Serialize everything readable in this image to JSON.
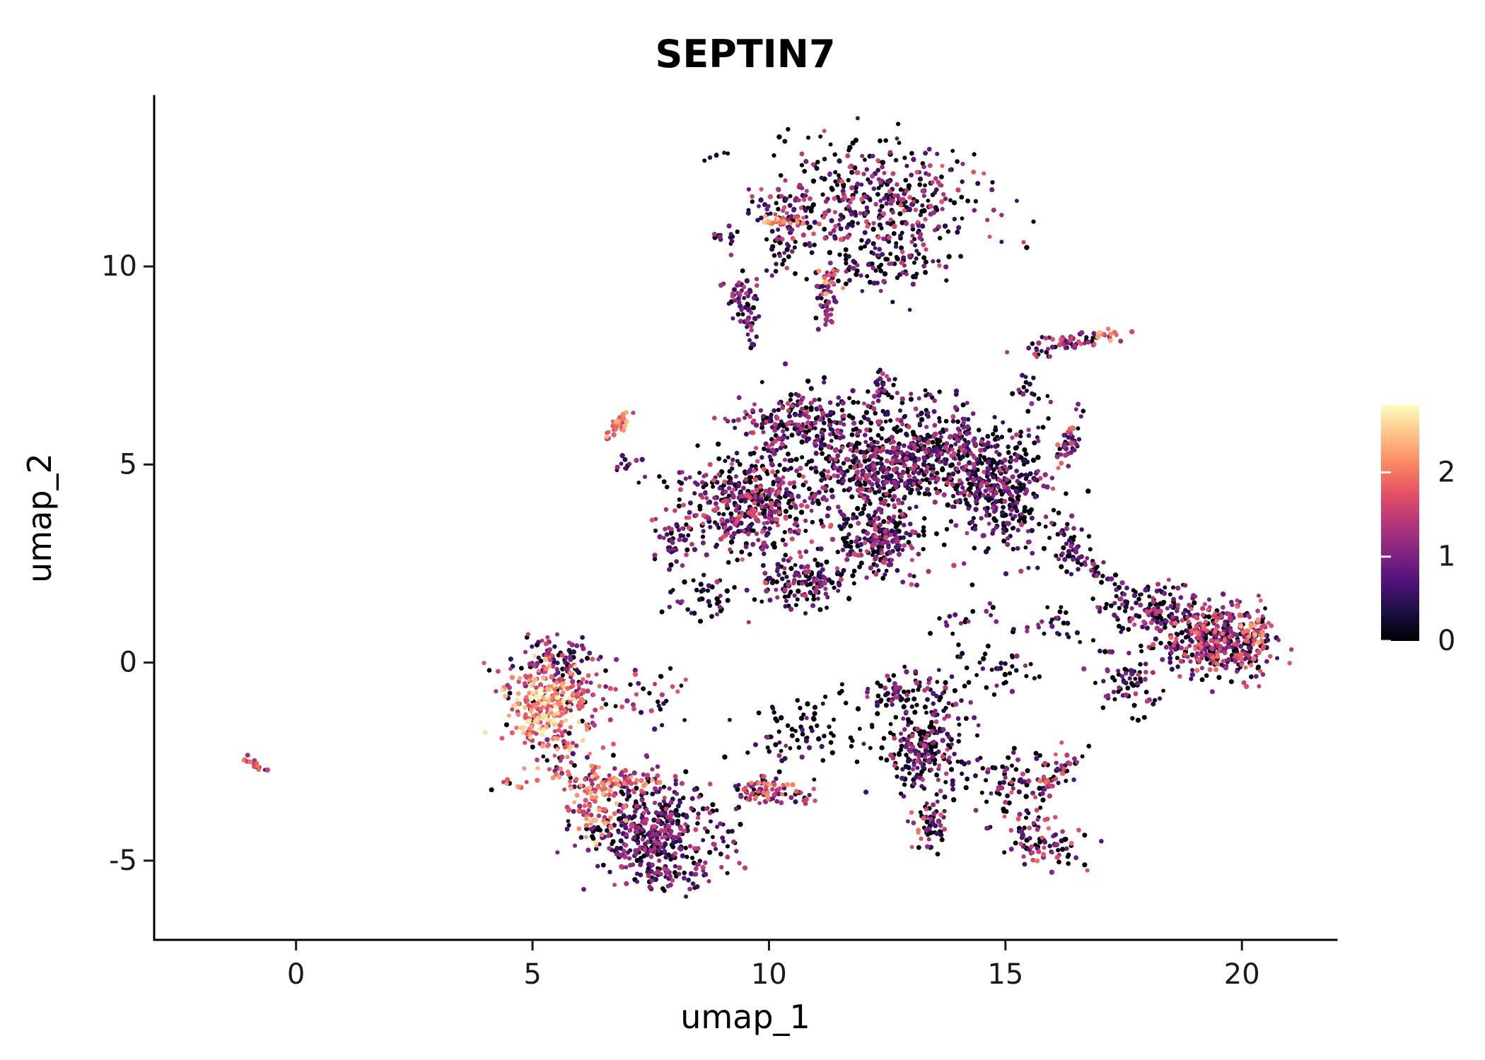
{
  "chart_data": {
    "type": "scatter",
    "title": "SEPTIN7",
    "xlabel": "umap_1",
    "ylabel": "umap_2",
    "xlim": [
      -3,
      22
    ],
    "ylim": [
      -7,
      14.3
    ],
    "xticks": [
      0,
      5,
      10,
      15,
      20
    ],
    "yticks": [
      -5,
      0,
      5,
      10
    ],
    "grid": false,
    "background": "#ffffff",
    "point_radius": 3.2,
    "seed": 20240507,
    "colorbar": {
      "position": "right",
      "ticks": [
        0,
        1,
        2
      ],
      "cmin": 0,
      "cmax": 2.8,
      "colormap_name": "magma",
      "colormap_stops": [
        "#000004",
        "#1c1044",
        "#4f127b",
        "#812581",
        "#b5367a",
        "#e55064",
        "#fb8761",
        "#fec287",
        "#fcfdbf"
      ]
    },
    "clusters": [
      {
        "cx": 12.4,
        "cy": 11.6,
        "sx": 1.05,
        "sy": 0.8,
        "n": 400,
        "zero": 0.35,
        "emin": 0.2,
        "emax": 1.8
      },
      {
        "cx": 10.5,
        "cy": 11.2,
        "sx": 0.4,
        "sy": 0.4,
        "n": 80,
        "zero": 0.3,
        "emin": 0.3,
        "emax": 1.8
      },
      {
        "cx": 10.15,
        "cy": 11.15,
        "sx": 0.3,
        "sy": 0.07,
        "n": 22,
        "zero": 0.05,
        "emin": 1.7,
        "emax": 2.5
      },
      {
        "cx": 9.1,
        "cy": 10.8,
        "sx": 0.2,
        "sy": 0.15,
        "n": 14,
        "zero": 0.3,
        "emin": 0.3,
        "emax": 1.5
      },
      {
        "cx": 10.3,
        "cy": 10.35,
        "sx": 0.25,
        "sy": 0.2,
        "n": 20,
        "zero": 0.4,
        "emin": 0.2,
        "emax": 1.4
      },
      {
        "cx": 12.5,
        "cy": 10.05,
        "sx": 0.7,
        "sy": 0.35,
        "n": 70,
        "zero": 0.5,
        "emin": 0.1,
        "emax": 1.3
      },
      {
        "cx": 11.0,
        "cy": 13.0,
        "sx": 0.5,
        "sy": 0.25,
        "n": 10,
        "zero": 0.4,
        "emin": 0.2,
        "emax": 1.2
      },
      {
        "cx": 8.8,
        "cy": 12.8,
        "sx": 0.3,
        "sy": 0.2,
        "n": 5,
        "zero": 0.4,
        "emin": 0.2,
        "emax": 1.0
      },
      {
        "cx": 9.4,
        "cy": 9.3,
        "sx": 0.18,
        "sy": 0.28,
        "n": 40,
        "zero": 0.2,
        "emin": 0.5,
        "emax": 1.5
      },
      {
        "cx": 9.55,
        "cy": 8.6,
        "sx": 0.1,
        "sy": 0.3,
        "n": 30,
        "zero": 0.2,
        "emin": 0.4,
        "emax": 1.4
      },
      {
        "cx": 11.25,
        "cy": 9.0,
        "sx": 0.1,
        "sy": 0.4,
        "n": 40,
        "zero": 0.15,
        "emin": 0.4,
        "emax": 1.4
      },
      {
        "cx": 11.3,
        "cy": 9.55,
        "sx": 0.12,
        "sy": 0.15,
        "n": 14,
        "zero": 0.05,
        "emin": 1.6,
        "emax": 2.4
      },
      {
        "cx": 16.3,
        "cy": 8.05,
        "sx": 0.5,
        "sy": 0.13,
        "rot": 10,
        "n": 65,
        "zero": 0.25,
        "emin": 0.3,
        "emax": 1.8
      },
      {
        "cx": 17.15,
        "cy": 8.27,
        "sx": 0.12,
        "sy": 0.08,
        "n": 12,
        "zero": 0.05,
        "emin": 1.5,
        "emax": 2.4
      },
      {
        "cx": 6.8,
        "cy": 6.0,
        "sx": 0.25,
        "sy": 0.07,
        "rot": 50,
        "n": 35,
        "zero": 0.05,
        "emin": 1.2,
        "emax": 2.4
      },
      {
        "cx": 7.0,
        "cy": 4.95,
        "sx": 0.15,
        "sy": 0.25,
        "n": 12,
        "zero": 0.3,
        "emin": 0.3,
        "emax": 1.3
      },
      {
        "cx": 10.8,
        "cy": 6.1,
        "sx": 0.55,
        "sy": 0.35,
        "n": 180,
        "zero": 0.4,
        "emin": 0.2,
        "emax": 1.6
      },
      {
        "cx": 9.6,
        "cy": 6.15,
        "sx": 0.2,
        "sy": 0.3,
        "rot": 40,
        "n": 25,
        "zero": 0.2,
        "emin": 0.4,
        "emax": 1.8
      },
      {
        "cx": 12.9,
        "cy": 6.5,
        "sx": 0.7,
        "sy": 0.3,
        "n": 60,
        "zero": 0.5,
        "emin": 0.1,
        "emax": 1.3
      },
      {
        "cx": 13.6,
        "cy": 5.1,
        "sx": 0.8,
        "sy": 0.6,
        "n": 380,
        "zero": 0.4,
        "emin": 0.2,
        "emax": 1.6
      },
      {
        "cx": 14.9,
        "cy": 4.3,
        "sx": 0.55,
        "sy": 0.75,
        "n": 300,
        "zero": 0.45,
        "emin": 0.2,
        "emax": 1.5
      },
      {
        "cx": 12.1,
        "cy": 5.0,
        "sx": 0.6,
        "sy": 0.55,
        "n": 300,
        "zero": 0.4,
        "emin": 0.2,
        "emax": 1.6
      },
      {
        "cx": 9.7,
        "cy": 4.0,
        "sx": 0.8,
        "sy": 0.7,
        "n": 500,
        "zero": 0.33,
        "emin": 0.2,
        "emax": 1.8
      },
      {
        "cx": 12.3,
        "cy": 3.1,
        "sx": 0.5,
        "sy": 0.5,
        "n": 250,
        "zero": 0.35,
        "emin": 0.2,
        "emax": 1.7
      },
      {
        "cx": 10.7,
        "cy": 2.0,
        "sx": 0.5,
        "sy": 0.3,
        "n": 130,
        "zero": 0.4,
        "emin": 0.2,
        "emax": 1.5
      },
      {
        "cx": 8.0,
        "cy": 3.1,
        "sx": 0.2,
        "sy": 0.3,
        "n": 40,
        "zero": 0.3,
        "emin": 0.3,
        "emax": 1.6
      },
      {
        "cx": 8.8,
        "cy": 1.6,
        "sx": 0.5,
        "sy": 0.3,
        "n": 40,
        "zero": 0.5,
        "emin": 0.1,
        "emax": 1.3
      },
      {
        "cx": 16.3,
        "cy": 2.8,
        "sx": 0.25,
        "sy": 0.45,
        "n": 45,
        "zero": 0.5,
        "emin": 0.1,
        "emax": 1.2
      },
      {
        "cx": 16.3,
        "cy": 5.5,
        "sx": 0.12,
        "sy": 0.45,
        "rot": -15,
        "n": 45,
        "zero": 0.25,
        "emin": 0.5,
        "emax": 2.0
      },
      {
        "cx": 15.5,
        "cy": 6.8,
        "sx": 0.2,
        "sy": 0.25,
        "n": 18,
        "zero": 0.4,
        "emin": 0.2,
        "emax": 1.3
      },
      {
        "cx": 12.35,
        "cy": 7.1,
        "sx": 0.1,
        "sy": 0.25,
        "n": 20,
        "zero": 0.3,
        "emin": 0.3,
        "emax": 1.5
      },
      {
        "cx": 14.2,
        "cy": 1.0,
        "sx": 0.5,
        "sy": 0.4,
        "n": 25,
        "zero": 0.5,
        "emin": 0.1,
        "emax": 1.2
      },
      {
        "cx": 5.2,
        "cy": -1.0,
        "sx": 0.35,
        "sy": 0.45,
        "n": 200,
        "zero": 0.03,
        "emin": 1.4,
        "emax": 2.8
      },
      {
        "cx": 5.6,
        "cy": 0.0,
        "sx": 0.45,
        "sy": 0.4,
        "n": 100,
        "zero": 0.2,
        "emin": 0.4,
        "emax": 1.8
      },
      {
        "cx": 6.0,
        "cy": -0.9,
        "sx": 0.3,
        "sy": 0.5,
        "n": 70,
        "zero": 0.15,
        "emin": 0.8,
        "emax": 2.2
      },
      {
        "cx": 5.5,
        "cy": -2.2,
        "sx": 0.35,
        "sy": 0.35,
        "n": 60,
        "zero": 0.1,
        "emin": 1.0,
        "emax": 2.6
      },
      {
        "cx": 6.2,
        "cy": -2.9,
        "sx": 0.5,
        "sy": 0.3,
        "n": 40,
        "zero": 0.2,
        "emin": 0.6,
        "emax": 2.2
      },
      {
        "cx": 4.5,
        "cy": -3.05,
        "sx": 0.15,
        "sy": 0.08,
        "n": 8,
        "zero": 0.05,
        "emin": 1.5,
        "emax": 2.3
      },
      {
        "cx": 7.3,
        "cy": -0.8,
        "sx": 0.5,
        "sy": 0.35,
        "n": 35,
        "zero": 0.3,
        "emin": 0.3,
        "emax": 1.8
      },
      {
        "cx": 4.4,
        "cy": -0.5,
        "sx": 0.2,
        "sy": 0.3,
        "n": 10,
        "zero": 0.1,
        "emin": 1.0,
        "emax": 2.2
      },
      {
        "cx": 7.5,
        "cy": -4.2,
        "sx": 0.7,
        "sy": 0.6,
        "n": 400,
        "zero": 0.3,
        "emin": 0.2,
        "emax": 1.6
      },
      {
        "cx": 6.4,
        "cy": -3.6,
        "sx": 0.25,
        "sy": 0.45,
        "n": 70,
        "zero": 0.08,
        "emin": 1.2,
        "emax": 2.6
      },
      {
        "cx": 7.0,
        "cy": -3.0,
        "sx": 0.4,
        "sy": 0.2,
        "n": 50,
        "zero": 0.15,
        "emin": 0.8,
        "emax": 2.4
      },
      {
        "cx": 7.8,
        "cy": -5.35,
        "sx": 0.6,
        "sy": 0.2,
        "n": 60,
        "zero": 0.3,
        "emin": 0.3,
        "emax": 1.6
      },
      {
        "cx": 9.2,
        "cy": -4.5,
        "sx": 0.25,
        "sy": 0.3,
        "n": 15,
        "zero": 0.3,
        "emin": 0.3,
        "emax": 1.5
      },
      {
        "cx": -0.85,
        "cy": -2.6,
        "sx": 0.15,
        "sy": 0.05,
        "rot": -35,
        "n": 16,
        "zero": 0.1,
        "emin": 0.7,
        "emax": 2.0
      },
      {
        "cx": 9.9,
        "cy": -3.2,
        "sx": 0.28,
        "sy": 0.17,
        "n": 70,
        "zero": 0.15,
        "emin": 0.6,
        "emax": 2.3
      },
      {
        "cx": 10.7,
        "cy": -3.35,
        "sx": 0.2,
        "sy": 0.12,
        "n": 15,
        "zero": 0.2,
        "emin": 0.5,
        "emax": 2.0
      },
      {
        "cx": 10.8,
        "cy": -1.8,
        "sx": 0.7,
        "sy": 0.45,
        "n": 80,
        "zero": 0.55,
        "emin": 0.1,
        "emax": 1.2
      },
      {
        "cx": 13.0,
        "cy": -0.8,
        "sx": 0.6,
        "sy": 0.3,
        "n": 90,
        "zero": 0.4,
        "emin": 0.2,
        "emax": 1.5
      },
      {
        "cx": 13.3,
        "cy": -2.2,
        "sx": 0.35,
        "sy": 0.6,
        "n": 220,
        "zero": 0.4,
        "emin": 0.2,
        "emax": 1.6
      },
      {
        "cx": 13.4,
        "cy": -4.2,
        "sx": 0.2,
        "sy": 0.3,
        "n": 50,
        "zero": 0.3,
        "emin": 0.3,
        "emax": 2.0
      },
      {
        "cx": 14.8,
        "cy": -2.6,
        "sx": 0.25,
        "sy": 0.25,
        "n": 20,
        "zero": 0.4,
        "emin": 0.2,
        "emax": 1.4
      },
      {
        "cx": 15.3,
        "cy": -3.3,
        "sx": 0.5,
        "sy": 0.5,
        "n": 90,
        "zero": 0.4,
        "emin": 0.3,
        "emax": 1.8
      },
      {
        "cx": 16.1,
        "cy": -2.8,
        "sx": 0.35,
        "sy": 0.08,
        "rot": 40,
        "n": 35,
        "zero": 0.2,
        "emin": 0.4,
        "emax": 2.0
      },
      {
        "cx": 15.8,
        "cy": -4.6,
        "sx": 0.45,
        "sy": 0.3,
        "n": 70,
        "zero": 0.3,
        "emin": 0.3,
        "emax": 2.0
      },
      {
        "cx": 19.5,
        "cy": 0.6,
        "sx": 0.6,
        "sy": 0.45,
        "n": 420,
        "zero": 0.3,
        "emin": 0.3,
        "emax": 2.0
      },
      {
        "cx": 20.3,
        "cy": 0.7,
        "sx": 0.15,
        "sy": 0.3,
        "n": 40,
        "zero": 0.1,
        "emin": 0.8,
        "emax": 2.4
      },
      {
        "cx": 18.1,
        "cy": 1.4,
        "sx": 0.45,
        "sy": 0.35,
        "n": 120,
        "zero": 0.35,
        "emin": 0.2,
        "emax": 1.6
      },
      {
        "cx": 17.0,
        "cy": 2.2,
        "sx": 0.4,
        "sy": 0.1,
        "rot": -40,
        "n": 30,
        "zero": 0.3,
        "emin": 0.3,
        "emax": 1.5
      },
      {
        "cx": 17.6,
        "cy": -0.5,
        "sx": 0.4,
        "sy": 0.4,
        "n": 70,
        "zero": 0.4,
        "emin": 0.2,
        "emax": 1.5
      },
      {
        "cx": 16.0,
        "cy": 0.9,
        "sx": 0.3,
        "sy": 0.3,
        "n": 25,
        "zero": 0.5,
        "emin": 0.1,
        "emax": 1.2
      },
      {
        "cx": 14.9,
        "cy": -0.2,
        "sx": 0.35,
        "sy": 0.3,
        "n": 30,
        "zero": 0.5,
        "emin": 0.1,
        "emax": 1.2
      }
    ]
  }
}
